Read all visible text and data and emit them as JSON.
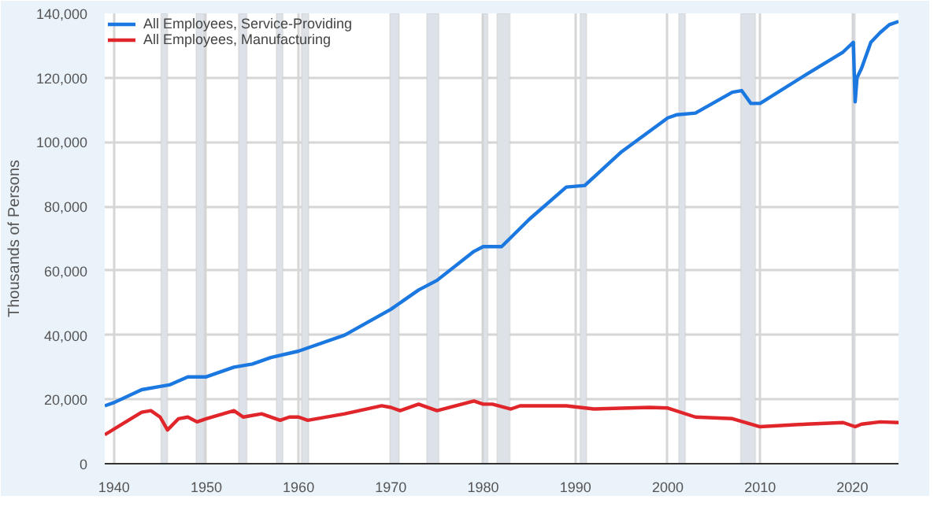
{
  "chart_data": {
    "type": "line",
    "ylabel": "Thousands of Persons",
    "x": [
      1939,
      1940,
      1943,
      1945,
      1946,
      1948,
      1950,
      1953,
      1955,
      1957,
      1960,
      1965,
      1970,
      1973,
      1975,
      1979,
      1980,
      1982,
      1985,
      1989,
      1991,
      1995,
      2000,
      2001,
      2003,
      2007,
      2008,
      2009,
      2010,
      2015,
      2019,
      2020.1,
      2020.3,
      2020.5,
      2021,
      2022,
      2023,
      2024,
      2025
    ],
    "series": [
      {
        "name": "All Employees, Service-Providing",
        "color": "#1a78e0",
        "values": [
          18000,
          19000,
          23000,
          24000,
          24500,
          27000,
          27000,
          30000,
          31000,
          33000,
          35000,
          40000,
          48000,
          54000,
          57000,
          66000,
          67500,
          67500,
          76000,
          86000,
          86500,
          97000,
          107500,
          108500,
          109000,
          115500,
          116000,
          112000,
          112000,
          121000,
          128000,
          131000,
          112500,
          120000,
          123000,
          131000,
          134000,
          136500,
          137500
        ]
      },
      {
        "name": "All Employees, Manufacturing",
        "color": "#e0262b",
        "x": [
          1939,
          1941,
          1943,
          1944,
          1945,
          1945.8,
          1947,
          1948,
          1949,
          1950,
          1953,
          1954,
          1956,
          1958,
          1959,
          1960,
          1961,
          1965,
          1969,
          1970,
          1971,
          1973,
          1975,
          1979,
          1980,
          1981,
          1983,
          1984,
          1989,
          1992,
          1998,
          2000,
          2003,
          2007,
          2010,
          2015,
          2019,
          2020.3,
          2021,
          2023,
          2025
        ],
        "values": [
          9000,
          12500,
          16000,
          16500,
          14500,
          10500,
          14000,
          14500,
          13000,
          14000,
          16500,
          14500,
          15500,
          13500,
          14500,
          14500,
          13500,
          15500,
          18000,
          17500,
          16500,
          18500,
          16500,
          19500,
          18500,
          18500,
          17000,
          18000,
          18000,
          17000,
          17500,
          17300,
          14500,
          14000,
          11500,
          12300,
          12800,
          11500,
          12300,
          13000,
          12800
        ]
      }
    ],
    "xlim": [
      1939,
      2025
    ],
    "ylim": [
      0,
      140000
    ],
    "xticks": [
      1940,
      1950,
      1960,
      1970,
      1980,
      1990,
      2000,
      2010,
      2020
    ],
    "yticks": [
      0,
      {
        "value": 20000,
        "label": "20,000"
      },
      {
        "value": 40000,
        "label": "40,000"
      },
      {
        "value": 60000,
        "label": "60,000"
      },
      {
        "value": 80000,
        "label": "80,000"
      },
      {
        "value": 100000,
        "label": "100,000"
      },
      {
        "value": 120000,
        "label": "120,000"
      },
      {
        "value": 140000,
        "label": "140,000"
      }
    ],
    "bands": [
      {
        "axis": "x",
        "from": 1945.1,
        "to": 1945.8,
        "color": "#dde2e8"
      },
      {
        "axis": "x",
        "from": 1948.9,
        "to": 1949.8,
        "color": "#dde2e8"
      },
      {
        "axis": "x",
        "from": 1953.5,
        "to": 1954.4,
        "color": "#dde2e8"
      },
      {
        "axis": "x",
        "from": 1957.6,
        "to": 1958.3,
        "color": "#dde2e8"
      },
      {
        "axis": "x",
        "from": 1960.3,
        "to": 1961.1,
        "color": "#dde2e8"
      },
      {
        "axis": "x",
        "from": 1969.9,
        "to": 1970.9,
        "color": "#dde2e8"
      },
      {
        "axis": "x",
        "from": 1973.9,
        "to": 1975.2,
        "color": "#dde2e8"
      },
      {
        "axis": "x",
        "from": 1980.0,
        "to": 1980.5,
        "color": "#dde2e8"
      },
      {
        "axis": "x",
        "from": 1981.5,
        "to": 1982.9,
        "color": "#dde2e8"
      },
      {
        "axis": "x",
        "from": 1990.5,
        "to": 1991.2,
        "color": "#dde2e8"
      },
      {
        "axis": "x",
        "from": 2001.2,
        "to": 2001.9,
        "color": "#dde2e8"
      },
      {
        "axis": "x",
        "from": 2007.9,
        "to": 2009.5,
        "color": "#dde2e8"
      },
      {
        "axis": "x",
        "from": 2020.1,
        "to": 2020.3,
        "color": "#dde2e8"
      }
    ],
    "grid": true,
    "legend": "top left"
  }
}
